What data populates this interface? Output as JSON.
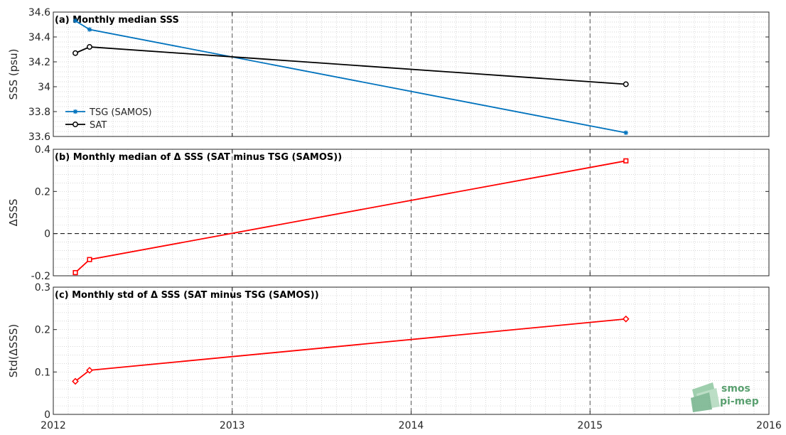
{
  "chart_data": [
    {
      "type": "line",
      "title": "(a) Monthly median SSS",
      "ylabel": "SSS (psu)",
      "xlabel": "",
      "xlim": [
        "2012-01-01",
        "2016-01-01"
      ],
      "ylim": [
        33.6,
        34.6
      ],
      "x_ticks": [
        "2012",
        "2013",
        "2014",
        "2015",
        "2016"
      ],
      "y_ticks": [
        "33.6",
        "33.8",
        "34",
        "34.2",
        "34.4",
        "34.6"
      ],
      "grid": "dotted minor grid with dashed yearly vertical lines",
      "legend_placement": "left",
      "series": [
        {
          "name": "TSG (SAMOS)",
          "color": "#0072bd",
          "marker": "asterisk",
          "x": [
            "2012-02-15",
            "2012-03-15",
            "2015-03-15"
          ],
          "values": [
            34.53,
            34.46,
            33.63
          ]
        },
        {
          "name": "SAT",
          "color": "#000000",
          "marker": "circle",
          "x": [
            "2012-02-15",
            "2012-03-15",
            "2015-03-15"
          ],
          "values": [
            34.27,
            34.32,
            34.02
          ]
        }
      ]
    },
    {
      "type": "line",
      "title": "(b) Monthly median of Δ SSS (SAT minus TSG (SAMOS))",
      "ylabel": "ΔSSS",
      "xlabel": "",
      "xlim": [
        "2012-01-01",
        "2016-01-01"
      ],
      "ylim": [
        -0.2,
        0.4
      ],
      "x_ticks": [
        "2012",
        "2013",
        "2014",
        "2015",
        "2016"
      ],
      "y_ticks": [
        "-0.2",
        "0",
        "0.2",
        "0.4"
      ],
      "zero_line": true,
      "series": [
        {
          "color": "#ff0000",
          "marker": "square",
          "x": [
            "2012-02-15",
            "2012-03-15",
            "2015-03-15"
          ],
          "values": [
            -0.185,
            -0.123,
            0.345
          ]
        }
      ]
    },
    {
      "type": "line",
      "title": "(c) Monthly std of Δ SSS (SAT minus TSG (SAMOS))",
      "ylabel": "Std(ΔSSS)",
      "xlabel": "",
      "xlim": [
        "2012-01-01",
        "2016-01-01"
      ],
      "ylim": [
        0,
        0.3
      ],
      "x_ticks": [
        "2012",
        "2013",
        "2014",
        "2015",
        "2016"
      ],
      "y_ticks": [
        "0",
        "0.1",
        "0.2",
        "0.3"
      ],
      "series": [
        {
          "color": "#ff0000",
          "marker": "diamond",
          "x": [
            "2012-02-15",
            "2012-03-15",
            "2015-03-15"
          ],
          "values": [
            0.078,
            0.104,
            0.225
          ]
        }
      ]
    }
  ],
  "logo": {
    "line1": "smos",
    "line2": "pi-mep"
  }
}
